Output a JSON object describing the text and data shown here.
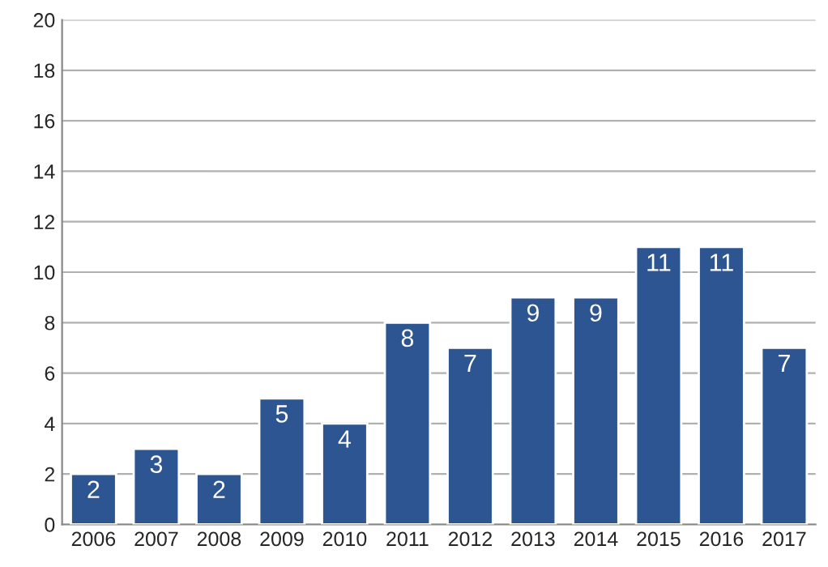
{
  "chart_data": {
    "type": "bar",
    "categories": [
      "2006",
      "2007",
      "2008",
      "2009",
      "2010",
      "2011",
      "2012",
      "2013",
      "2014",
      "2015",
      "2016",
      "2017"
    ],
    "values": [
      2,
      3,
      2,
      5,
      4,
      8,
      7,
      9,
      9,
      11,
      11,
      7
    ],
    "color": "#2d5591",
    "ylim": [
      0,
      20
    ],
    "yticks": [
      0,
      2,
      4,
      6,
      8,
      10,
      12,
      14,
      16,
      18,
      20
    ],
    "grid": "y",
    "data_labels": true,
    "legend": false
  }
}
